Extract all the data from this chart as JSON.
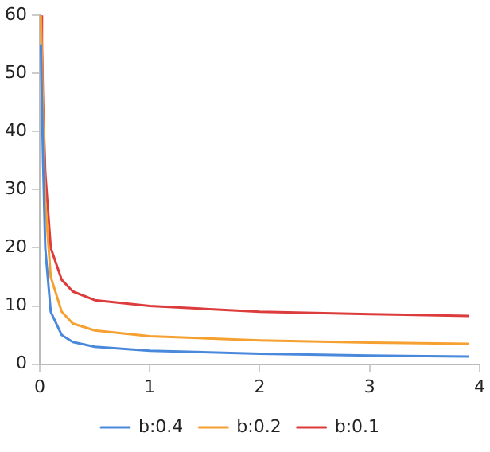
{
  "chart_data": {
    "type": "line",
    "xlim": [
      0,
      4
    ],
    "xticks": [
      0,
      1,
      2,
      3,
      4
    ],
    "ylim": [
      0,
      60
    ],
    "yticks": [
      0,
      10,
      20,
      30,
      40,
      50,
      60
    ],
    "grid": false,
    "legend": "bottom",
    "marker": "none",
    "series": [
      {
        "name": "b:0.4",
        "color": "#4a88dc",
        "x": [
          0.01,
          0.02,
          0.03,
          0.05,
          0.1,
          0.2,
          0.3,
          0.5,
          1,
          2,
          3,
          3.9
        ],
        "values": [
          55,
          45,
          35,
          20,
          9,
          5,
          3.8,
          3,
          2.3,
          1.8,
          1.5,
          1.3
        ]
      },
      {
        "name": "b:0.2",
        "color": "#f5a030",
        "x": [
          0.01,
          0.02,
          0.03,
          0.05,
          0.1,
          0.2,
          0.3,
          0.5,
          1,
          2,
          3,
          3.9
        ],
        "values": [
          60,
          52,
          42,
          28,
          15,
          9,
          7,
          5.8,
          4.8,
          4.1,
          3.7,
          3.5
        ]
      },
      {
        "name": "b:0.1",
        "color": "#dc3c3c",
        "x": [
          0.015,
          0.02,
          0.03,
          0.05,
          0.1,
          0.2,
          0.3,
          0.5,
          1,
          2,
          3,
          3.9
        ],
        "values": [
          60,
          55,
          45,
          33,
          20,
          14.5,
          12.5,
          11,
          10,
          9,
          8.6,
          8.3
        ]
      }
    ]
  }
}
